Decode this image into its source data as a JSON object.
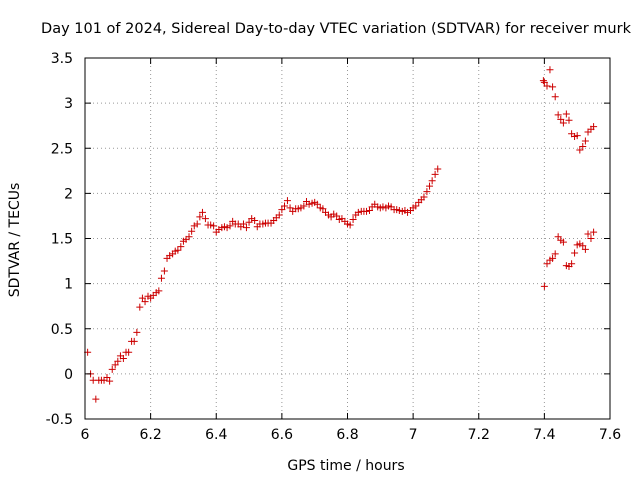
{
  "chart_data": {
    "type": "scatter",
    "title": "Day 101 of 2024, Sidereal Day-to-day VTEC variation (SDTVAR) for receiver murk",
    "xlabel": "GPS time / hours",
    "ylabel": "SDTVAR / TECUs",
    "xlim": [
      6.0,
      7.6
    ],
    "ylim": [
      -0.5,
      3.5
    ],
    "xticks": [
      6.0,
      6.2,
      6.4,
      6.6,
      6.8,
      7.0,
      7.2,
      7.4,
      7.6
    ],
    "xtick_labels": [
      "6",
      "6.2",
      "6.4",
      "6.6",
      "6.8",
      "7",
      "7.2",
      "7.4",
      "7.6"
    ],
    "yticks": [
      -0.5,
      0.0,
      0.5,
      1.0,
      1.5,
      2.0,
      2.5,
      3.0,
      3.5
    ],
    "ytick_labels": [
      "-0.5",
      "0",
      "0.5",
      "1",
      "1.5",
      "2",
      "2.5",
      "3",
      "3.5"
    ],
    "grid": true,
    "marker": "+",
    "marker_color": "#cc0000",
    "series": [
      {
        "name": "SDTVAR",
        "x": [
          6.008,
          6.017,
          6.025,
          6.033,
          6.042,
          6.05,
          6.058,
          6.067,
          6.075,
          6.083,
          6.092,
          6.1,
          6.108,
          6.117,
          6.125,
          6.133,
          6.142,
          6.15,
          6.158,
          6.167,
          6.175,
          6.183,
          6.192,
          6.2,
          6.208,
          6.217,
          6.225,
          6.233,
          6.242,
          6.25,
          6.258,
          6.267,
          6.275,
          6.283,
          6.292,
          6.3,
          6.308,
          6.317,
          6.325,
          6.333,
          6.342,
          6.35,
          6.358,
          6.367,
          6.375,
          6.383,
          6.392,
          6.4,
          6.408,
          6.417,
          6.425,
          6.433,
          6.442,
          6.45,
          6.458,
          6.467,
          6.475,
          6.483,
          6.492,
          6.5,
          6.508,
          6.517,
          6.525,
          6.533,
          6.542,
          6.55,
          6.558,
          6.567,
          6.575,
          6.583,
          6.592,
          6.6,
          6.608,
          6.617,
          6.625,
          6.633,
          6.642,
          6.65,
          6.658,
          6.667,
          6.675,
          6.683,
          6.692,
          6.7,
          6.708,
          6.717,
          6.725,
          6.733,
          6.742,
          6.75,
          6.758,
          6.767,
          6.775,
          6.783,
          6.792,
          6.8,
          6.808,
          6.817,
          6.825,
          6.833,
          6.842,
          6.85,
          6.858,
          6.867,
          6.875,
          6.883,
          6.892,
          6.9,
          6.908,
          6.917,
          6.925,
          6.933,
          6.942,
          6.95,
          6.958,
          6.967,
          6.975,
          6.983,
          6.992,
          7.0,
          7.008,
          7.017,
          7.025,
          7.033,
          7.042,
          7.05,
          7.058,
          7.067,
          7.075,
          7.397,
          7.4,
          7.408,
          7.417,
          7.425,
          7.433,
          7.442,
          7.45,
          7.458,
          7.467,
          7.475,
          7.483,
          7.492,
          7.5,
          7.508,
          7.517,
          7.525,
          7.533,
          7.542,
          7.55,
          7.4,
          7.408,
          7.417,
          7.425,
          7.433,
          7.442,
          7.45,
          7.458,
          7.467,
          7.475,
          7.483,
          7.492,
          7.5,
          7.508,
          7.517,
          7.525,
          7.533,
          7.542,
          7.55
        ],
        "y": [
          0.24,
          0.0,
          -0.07,
          -0.28,
          -0.07,
          -0.07,
          -0.07,
          -0.04,
          -0.08,
          0.05,
          0.1,
          0.14,
          0.2,
          0.17,
          0.24,
          0.24,
          0.36,
          0.36,
          0.46,
          0.74,
          0.84,
          0.8,
          0.86,
          0.84,
          0.87,
          0.9,
          0.92,
          1.06,
          1.14,
          1.28,
          1.31,
          1.33,
          1.36,
          1.37,
          1.41,
          1.47,
          1.49,
          1.52,
          1.58,
          1.64,
          1.66,
          1.74,
          1.79,
          1.72,
          1.65,
          1.65,
          1.64,
          1.57,
          1.6,
          1.62,
          1.63,
          1.62,
          1.64,
          1.69,
          1.66,
          1.66,
          1.63,
          1.66,
          1.62,
          1.68,
          1.72,
          1.7,
          1.63,
          1.66,
          1.66,
          1.67,
          1.67,
          1.67,
          1.7,
          1.73,
          1.76,
          1.82,
          1.86,
          1.92,
          1.84,
          1.8,
          1.83,
          1.83,
          1.84,
          1.86,
          1.91,
          1.88,
          1.89,
          1.9,
          1.88,
          1.84,
          1.83,
          1.79,
          1.76,
          1.74,
          1.77,
          1.75,
          1.71,
          1.72,
          1.69,
          1.66,
          1.65,
          1.71,
          1.76,
          1.79,
          1.8,
          1.8,
          1.8,
          1.81,
          1.85,
          1.88,
          1.85,
          1.84,
          1.85,
          1.84,
          1.86,
          1.85,
          1.82,
          1.82,
          1.81,
          1.8,
          1.81,
          1.79,
          1.81,
          1.84,
          1.86,
          1.9,
          1.93,
          1.96,
          2.02,
          2.08,
          2.14,
          2.21,
          2.27,
          3.25,
          3.23,
          3.19,
          3.37,
          3.18,
          3.07,
          2.87,
          2.82,
          2.78,
          2.88,
          2.81,
          2.66,
          2.63,
          2.64,
          2.48,
          2.52,
          2.58,
          2.68,
          2.71,
          2.74,
          0.97,
          1.22,
          1.26,
          1.28,
          1.33,
          1.52,
          1.48,
          1.46,
          1.2,
          1.19,
          1.22,
          1.34,
          1.43,
          1.44,
          1.42,
          1.38,
          1.55,
          1.5,
          1.57
        ]
      }
    ]
  }
}
